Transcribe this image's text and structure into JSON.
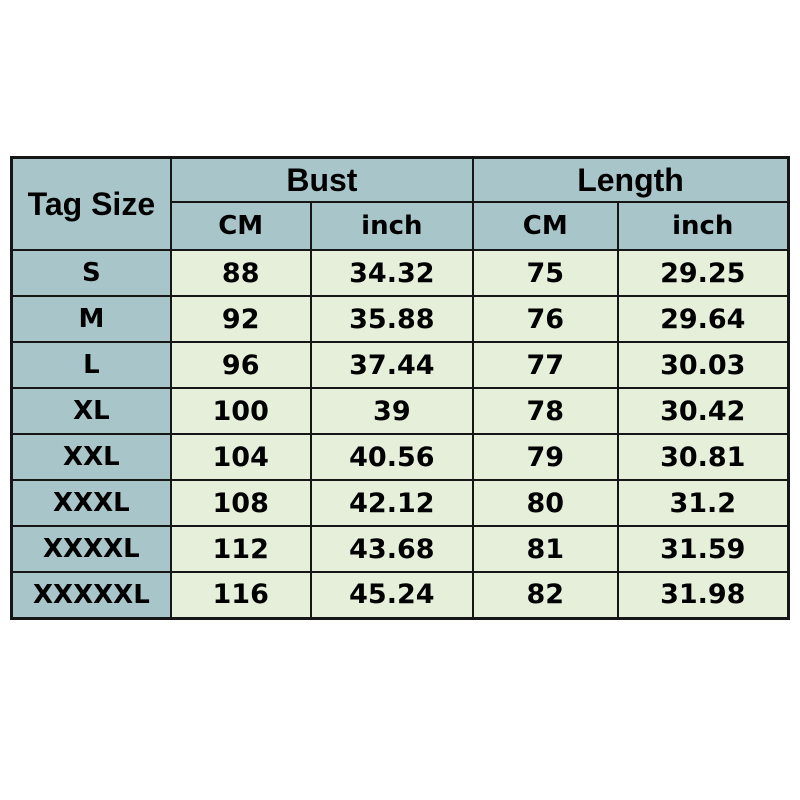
{
  "chart_data": {
    "type": "table",
    "corner_header": "Tag Size",
    "group_headers": [
      {
        "label": "Bust",
        "span": 2
      },
      {
        "label": "Length",
        "span": 2
      }
    ],
    "unit_headers": [
      "CM",
      "inch",
      "CM",
      "inch"
    ],
    "rows": [
      {
        "size": "S",
        "values": [
          "88",
          "34.32",
          "75",
          "29.25"
        ]
      },
      {
        "size": "M",
        "values": [
          "92",
          "35.88",
          "76",
          "29.64"
        ]
      },
      {
        "size": "L",
        "values": [
          "96",
          "37.44",
          "77",
          "30.03"
        ]
      },
      {
        "size": "XL",
        "values": [
          "100",
          "39",
          "78",
          "30.42"
        ]
      },
      {
        "size": "XXL",
        "values": [
          "104",
          "40.56",
          "79",
          "30.81"
        ]
      },
      {
        "size": "XXXL",
        "values": [
          "108",
          "42.12",
          "80",
          "31.2"
        ]
      },
      {
        "size": "XXXXL",
        "values": [
          "112",
          "43.68",
          "81",
          "31.59"
        ]
      },
      {
        "size": "XXXXXL",
        "values": [
          "116",
          "45.24",
          "82",
          "31.98"
        ]
      }
    ]
  },
  "colors": {
    "header_bg": "#a8c5c9",
    "cell_bg": "#e5efda",
    "border": "#161616",
    "text": "#000000",
    "page_bg": "#ffffff"
  }
}
